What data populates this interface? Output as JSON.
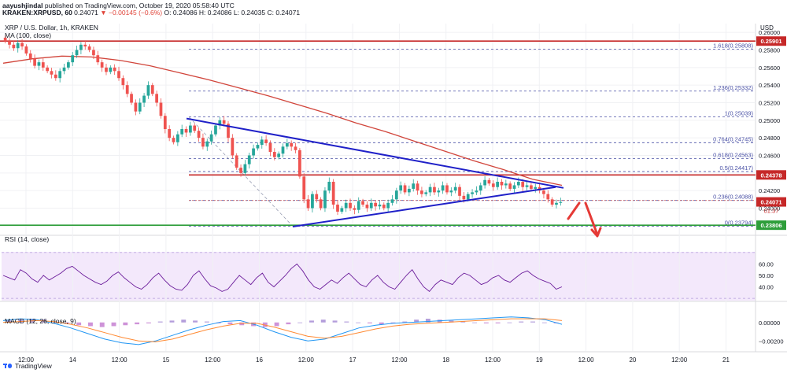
{
  "header": {
    "author": "aayushjindal",
    "published": "published on TradingView.com, October 19, 2020 05:58:40 UTC",
    "symbol": "KRAKEN:XRPUSD, 60",
    "last": "0.24071",
    "change": "▼ −0.00145 (−0.6%)",
    "o": "O: 0.24086",
    "h": "H: 0.24086",
    "l": "L: 0.24035",
    "c": "C: 0.24071",
    "chart_title": "XRP / U.S. Dollar, 1h, KRAKEN",
    "study": "MA (100, close)",
    "currency": "USD"
  },
  "footer": {
    "brand": "TradingView"
  },
  "colors": {
    "up": "#26a69a",
    "down": "#ef5350",
    "ma": "#d1453b",
    "trend": "#1f20c8",
    "resistance": "#c62828",
    "support": "#2e9e3a",
    "fib": "#4b52a6",
    "rsi": "#6a1b9a",
    "macd": "#2196f3",
    "signal": "#ff8a33"
  },
  "chart_data": [
    {
      "type": "candlestick",
      "title": "XRP / U.S. Dollar, 1h, KRAKEN",
      "ylim": [
        0.237,
        0.261
      ],
      "y_ticks": [
        "0.26000",
        "0.25800",
        "0.25600",
        "0.25400",
        "0.25200",
        "0.25000",
        "0.24800",
        "0.24600",
        "0.24400",
        "0.24200",
        "0.24000",
        "0.23800"
      ],
      "x_ticks": [
        "12:00",
        "14",
        "12:00",
        "15",
        "12:00",
        "16",
        "12:00",
        "17",
        "12:00",
        "18",
        "12:00",
        "19",
        "12:00",
        "20",
        "12:00",
        "21"
      ],
      "price_labels": {
        "resistance_top": "0.25901",
        "resistance_mid": "0.24378",
        "current": "0.24071",
        "countdown": "01:37",
        "support": "0.23806"
      },
      "fib_levels": [
        {
          "label": "1.618(0.25808)",
          "value": 0.25808
        },
        {
          "label": "1.236(0.25332)",
          "value": 0.25332
        },
        {
          "label": "1(0.25039)",
          "value": 0.25039
        },
        {
          "label": "0.764(0.24745)",
          "value": 0.24745
        },
        {
          "label": "0.618(0.24563)",
          "value": 0.24563
        },
        {
          "label": "0.5(0.24417)",
          "value": 0.24417
        },
        {
          "label": "0.236(0.24088)",
          "value": 0.24088
        },
        {
          "label": "0(0.23794)",
          "value": 0.23794
        }
      ],
      "horizontal_lines": {
        "resistance_top": 0.25901,
        "resistance_mid": 0.24378,
        "support": 0.23806
      },
      "candles_close": [
        0.259,
        0.2586,
        0.2582,
        0.2588,
        0.2584,
        0.2576,
        0.257,
        0.2562,
        0.2566,
        0.256,
        0.2556,
        0.2552,
        0.2548,
        0.2556,
        0.256,
        0.2566,
        0.2574,
        0.258,
        0.2586,
        0.2584,
        0.258,
        0.2574,
        0.2566,
        0.256,
        0.2555,
        0.256,
        0.2556,
        0.2548,
        0.254,
        0.253,
        0.252,
        0.251,
        0.252,
        0.2528,
        0.254,
        0.253,
        0.252,
        0.2505,
        0.249,
        0.248,
        0.2475,
        0.2484,
        0.249,
        0.2486,
        0.2494,
        0.2488,
        0.248,
        0.247,
        0.2476,
        0.2484,
        0.2494,
        0.25,
        0.2496,
        0.248,
        0.246,
        0.2446,
        0.244,
        0.245,
        0.246,
        0.2468,
        0.2472,
        0.2478,
        0.2474,
        0.2464,
        0.2458,
        0.2462,
        0.247,
        0.2474,
        0.247,
        0.2466,
        0.2436,
        0.241,
        0.24,
        0.2416,
        0.241,
        0.24,
        0.242,
        0.243,
        0.2404,
        0.2396,
        0.24,
        0.2406,
        0.24,
        0.2398,
        0.2408,
        0.2404,
        0.24,
        0.2406,
        0.2402,
        0.2404,
        0.24,
        0.2406,
        0.241,
        0.242,
        0.2426,
        0.2418,
        0.2422,
        0.2428,
        0.242,
        0.2416,
        0.2418,
        0.2424,
        0.2418,
        0.242,
        0.2426,
        0.2418,
        0.242,
        0.2424,
        0.2414,
        0.241,
        0.2416,
        0.2418,
        0.242,
        0.2426,
        0.2432,
        0.2428,
        0.2424,
        0.243,
        0.2426,
        0.2428,
        0.2422,
        0.2426,
        0.243,
        0.2424,
        0.2426,
        0.2422,
        0.2424,
        0.242,
        0.2416,
        0.241,
        0.2404,
        0.2406,
        0.2407
      ],
      "ma100": [
        0.2565,
        0.257,
        0.2573,
        0.2572,
        0.2568,
        0.2562,
        0.2554,
        0.2546,
        0.2537,
        0.2528,
        0.2518,
        0.2508,
        0.2497,
        0.2487,
        0.2476,
        0.2465,
        0.2454,
        0.2444,
        0.2433,
        0.2426
      ],
      "trendline_upper": [
        [
          0.2502,
          "start"
        ],
        [
          0.2423,
          "end"
        ]
      ],
      "trendline_lower": [
        [
          0.2379,
          "start"
        ],
        [
          0.2424,
          "end"
        ]
      ]
    },
    {
      "type": "line",
      "title": "RSI (14, close)",
      "ylim": [
        28,
        72
      ],
      "y_ticks": [
        "60.00",
        "50.00",
        "40.00"
      ],
      "values": [
        50,
        48,
        46,
        55,
        52,
        47,
        44,
        50,
        46,
        49,
        52,
        56,
        58,
        54,
        50,
        47,
        44,
        42,
        45,
        50,
        53,
        48,
        44,
        40,
        38,
        42,
        48,
        52,
        46,
        41,
        38,
        37,
        42,
        50,
        54,
        47,
        41,
        39,
        36,
        38,
        44,
        50,
        46,
        42,
        48,
        52,
        44,
        40,
        45,
        50,
        56,
        60,
        54,
        46,
        40,
        38,
        42,
        46,
        43,
        48,
        52,
        47,
        42,
        40,
        46,
        50,
        44,
        40,
        38,
        44,
        50,
        55,
        47,
        40,
        36,
        42,
        46,
        44,
        42,
        48,
        52,
        50,
        46,
        42,
        44,
        48,
        50,
        46,
        44,
        48,
        52,
        54,
        50,
        47,
        45,
        43,
        38,
        40
      ],
      "overbought": 70,
      "oversold": 30
    },
    {
      "type": "histogram",
      "title": "MACD (12, 26, close, 9)",
      "ylim": [
        -0.003,
        0.001
      ],
      "y_ticks": [
        "0.00000",
        "−0.00200"
      ],
      "histogram": [
        0.0002,
        0.0003,
        0.0004,
        0.0003,
        0.0001,
        -0.0001,
        -0.0003,
        -0.0004,
        -0.0005,
        -0.0004,
        -0.0003,
        -0.0002,
        -0.0001,
        0.0001,
        0.0002,
        0.0003,
        0.0002,
        0.0001,
        -0.0001,
        -0.0002,
        -0.0003,
        -0.0004,
        -0.0005,
        -0.0004,
        -0.0002,
        0.0,
        0.0002,
        0.0003,
        0.0002,
        0.0001,
        0.0,
        -0.0001,
        -0.0002,
        -0.0001,
        0.0001,
        0.0003,
        0.0004,
        0.0003,
        0.0002,
        0.0001,
        0.0,
        -0.0001,
        -0.0001,
        0.0,
        0.0001,
        0.0001,
        0.0,
        -0.0001
      ],
      "macd": [
        0.0002,
        0.0004,
        0.0003,
        -0.0001,
        -0.0006,
        -0.0012,
        -0.0018,
        -0.0022,
        -0.0024,
        -0.002,
        -0.0014,
        -0.0008,
        -0.0003,
        0.0001,
        0.0002,
        -0.0003,
        -0.001,
        -0.0016,
        -0.002,
        -0.0018,
        -0.0012,
        -0.0006,
        -0.0003,
        -0.0001,
        0.0,
        0.0001,
        0.0002,
        0.0003,
        0.0004,
        0.0005,
        0.0006,
        0.0005,
        0.0003,
        -0.0002
      ],
      "signal": [
        0.0,
        0.0001,
        0.0002,
        0.0001,
        -0.0002,
        -0.0006,
        -0.0011,
        -0.0016,
        -0.002,
        -0.0021,
        -0.0018,
        -0.0013,
        -0.0008,
        -0.0004,
        -0.0001,
        -0.0001,
        -0.0005,
        -0.001,
        -0.0015,
        -0.0017,
        -0.0015,
        -0.0011,
        -0.0007,
        -0.0004,
        -0.0002,
        -0.0001,
        0.0,
        0.0001,
        0.0002,
        0.0003,
        0.0004,
        0.0004,
        0.0004,
        0.0002
      ]
    }
  ]
}
